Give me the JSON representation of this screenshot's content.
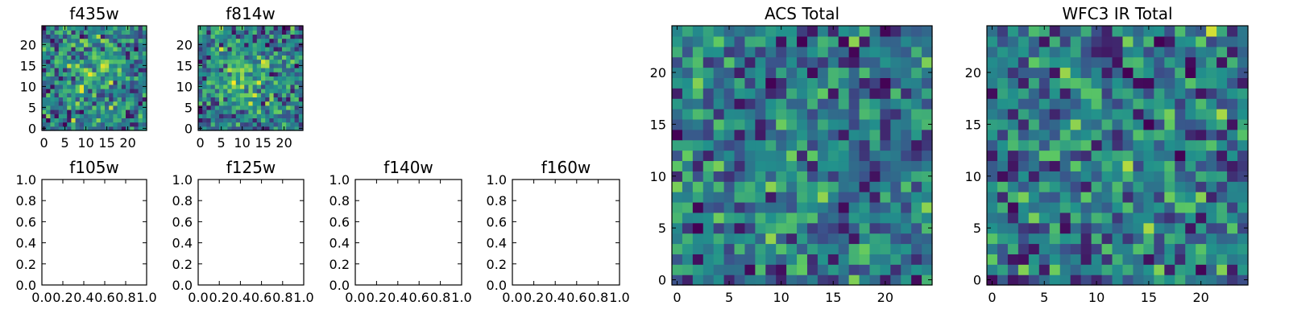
{
  "colormap": [
    "#440154",
    "#3b528b",
    "#21918c",
    "#5ec962",
    "#fde725"
  ],
  "chart_data": [
    {
      "name": "f435w",
      "type": "heatmap",
      "title": "f435w",
      "size": 25,
      "xlim": [
        0,
        24
      ],
      "ylim": [
        0,
        24
      ],
      "xticks": [
        "0",
        "5",
        "10",
        "15",
        "20"
      ],
      "yticks": [
        "0",
        "5",
        "10",
        "15",
        "20"
      ],
      "has_image": true,
      "seed": 11,
      "blob": [
        12,
        14,
        4,
        0.25
      ]
    },
    {
      "name": "f814w",
      "type": "heatmap",
      "title": "f814w",
      "size": 25,
      "xlim": [
        0,
        24
      ],
      "ylim": [
        0,
        24
      ],
      "xticks": [
        "0",
        "5",
        "10",
        "15",
        "20"
      ],
      "yticks": [
        "0",
        "5",
        "10",
        "15",
        "20"
      ],
      "has_image": true,
      "seed": 23,
      "blob": [
        10,
        12,
        4,
        0.35
      ]
    },
    {
      "name": "f105w",
      "type": "heatmap",
      "title": "f105w",
      "xlim": [
        0.0,
        1.0
      ],
      "ylim": [
        0.0,
        1.0
      ],
      "xticks": [
        "0.0",
        "0.2",
        "0.4",
        "0.6",
        "0.8",
        "1.0"
      ],
      "yticks": [
        "0.0",
        "0.2",
        "0.4",
        "0.6",
        "0.8",
        "1.0"
      ],
      "has_image": false
    },
    {
      "name": "f125w",
      "type": "heatmap",
      "title": "f125w",
      "xlim": [
        0.0,
        1.0
      ],
      "ylim": [
        0.0,
        1.0
      ],
      "xticks": [
        "0.0",
        "0.2",
        "0.4",
        "0.6",
        "0.8",
        "1.0"
      ],
      "yticks": [
        "0.0",
        "0.2",
        "0.4",
        "0.6",
        "0.8",
        "1.0"
      ],
      "has_image": false
    },
    {
      "name": "f140w",
      "type": "heatmap",
      "title": "f140w",
      "xlim": [
        0.0,
        1.0
      ],
      "ylim": [
        0.0,
        1.0
      ],
      "xticks": [
        "0.0",
        "0.2",
        "0.4",
        "0.6",
        "0.8",
        "1.0"
      ],
      "yticks": [
        "0.0",
        "0.2",
        "0.4",
        "0.6",
        "0.8",
        "1.0"
      ],
      "has_image": false
    },
    {
      "name": "f160w",
      "type": "heatmap",
      "title": "f160w",
      "xlim": [
        0.0,
        1.0
      ],
      "ylim": [
        0.0,
        1.0
      ],
      "xticks": [
        "0.0",
        "0.2",
        "0.4",
        "0.6",
        "0.8",
        "1.0"
      ],
      "yticks": [
        "0.0",
        "0.2",
        "0.4",
        "0.6",
        "0.8",
        "1.0"
      ],
      "has_image": false
    },
    {
      "name": "acs-total",
      "type": "heatmap",
      "title": "ACS Total",
      "size": 25,
      "xlim": [
        0,
        24
      ],
      "ylim": [
        0,
        24
      ],
      "xticks": [
        "0",
        "5",
        "10",
        "15",
        "20"
      ],
      "yticks": [
        "0",
        "5",
        "10",
        "15",
        "20"
      ],
      "has_image": true,
      "seed": 37,
      "blob": [
        12,
        12,
        3,
        0.05
      ]
    },
    {
      "name": "wfc3-ir-total",
      "type": "heatmap",
      "title": "WFC3 IR Total",
      "size": 25,
      "xlim": [
        0,
        24
      ],
      "ylim": [
        0,
        24
      ],
      "xticks": [
        "0",
        "5",
        "10",
        "15",
        "20"
      ],
      "yticks": [
        "0",
        "5",
        "10",
        "15",
        "20"
      ],
      "has_image": true,
      "seed": 53,
      "blob": [
        12,
        12,
        3,
        0.05
      ]
    }
  ]
}
